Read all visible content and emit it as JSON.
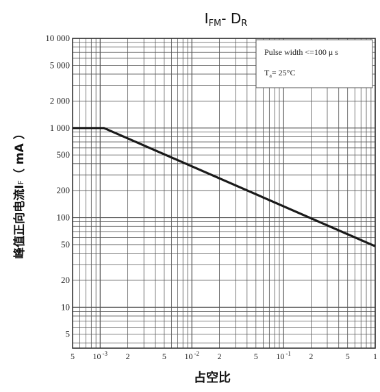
{
  "chart_data": {
    "type": "line",
    "title": {
      "main": "I",
      "sub1": "FM",
      "sep": "- D",
      "sub2": "R"
    },
    "xlabel": "占空比",
    "ylabel": {
      "main": "峰值正向电流I",
      "sub": "F",
      "unit": "（ mA ）"
    },
    "xscale": "log",
    "yscale": "log",
    "xlim": [
      0.0005,
      1
    ],
    "ylim": [
      3.5,
      10000
    ],
    "grid": true,
    "x_ticks": [
      {
        "value": 0.0005,
        "label": "5"
      },
      {
        "value": 0.001,
        "label": "10",
        "sup": "-3"
      },
      {
        "value": 0.002,
        "label": "2"
      },
      {
        "value": 0.005,
        "label": "5"
      },
      {
        "value": 0.01,
        "label": "10",
        "sup": "-2"
      },
      {
        "value": 0.02,
        "label": "2"
      },
      {
        "value": 0.05,
        "label": "5"
      },
      {
        "value": 0.1,
        "label": "10",
        "sup": "-1"
      },
      {
        "value": 0.2,
        "label": "2"
      },
      {
        "value": 0.5,
        "label": "5"
      },
      {
        "value": 1,
        "label": "1"
      }
    ],
    "y_ticks": [
      {
        "value": 5,
        "label": "5"
      },
      {
        "value": 10,
        "label": "10"
      },
      {
        "value": 20,
        "label": "20"
      },
      {
        "value": 50,
        "label": "50"
      },
      {
        "value": 100,
        "label": "100"
      },
      {
        "value": 200,
        "label": "200"
      },
      {
        "value": 500,
        "label": "500"
      },
      {
        "value": 1000,
        "label": "1 000"
      },
      {
        "value": 2000,
        "label": "2 000"
      },
      {
        "value": 5000,
        "label": "5 000"
      },
      {
        "value": 10000,
        "label": "10 000"
      }
    ],
    "series": [
      {
        "x": [
          0.0005,
          0.0011,
          1
        ],
        "y": [
          1000,
          1000,
          48
        ]
      }
    ],
    "annotations": {
      "pulse_width": "Pulse width <=100 μ s",
      "temp_main": "T",
      "temp_sub": "a",
      "temp_value": "= 25°C"
    },
    "colors": {
      "line": "#1a1a1a",
      "grid": "#555555",
      "background": "#ffffff"
    }
  }
}
